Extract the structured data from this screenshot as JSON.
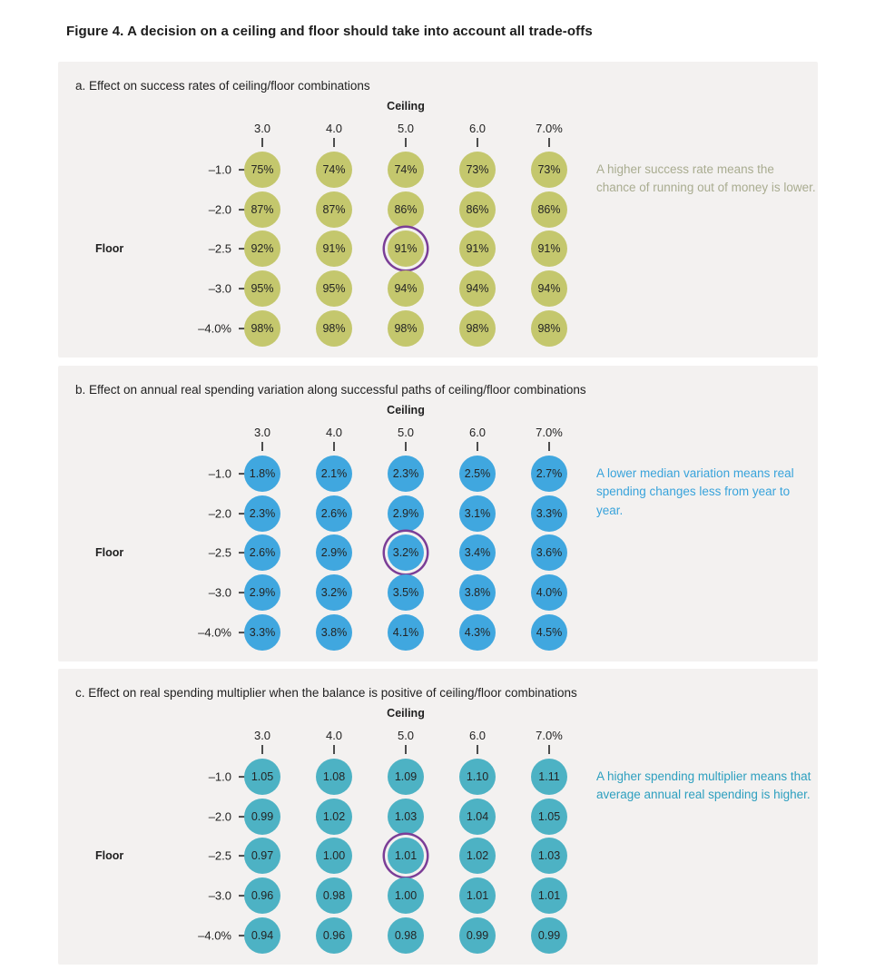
{
  "figure_title": "Figure 4. A decision on a ceiling and floor should take into account all trade-offs",
  "ceiling_label": "Ceiling",
  "floor_label": "Floor",
  "columns": [
    "3.0",
    "4.0",
    "5.0",
    "6.0",
    "7.0%"
  ],
  "rows": [
    "–1.0",
    "–2.0",
    "–2.5",
    "–3.0",
    "–4.0%"
  ],
  "highlight": {
    "row_index": 2,
    "col_index": 2,
    "ring_color": "#7b3e97"
  },
  "panel_background": "#f3f1f0",
  "panels": [
    {
      "id": "a",
      "title": "a. Effect on success rates of ceiling/floor combinations",
      "circle_color": "#c4c76d",
      "annotation": "A higher success rate means the chance of running out of money is lower.",
      "annotation_color": "#a9ac90",
      "values": [
        [
          "75%",
          "74%",
          "74%",
          "73%",
          "73%"
        ],
        [
          "87%",
          "87%",
          "86%",
          "86%",
          "86%"
        ],
        [
          "92%",
          "91%",
          "91%",
          "91%",
          "91%"
        ],
        [
          "95%",
          "95%",
          "94%",
          "94%",
          "94%"
        ],
        [
          "98%",
          "98%",
          "98%",
          "98%",
          "98%"
        ]
      ]
    },
    {
      "id": "b",
      "title": "b. Effect on annual real spending variation along successful paths of ceiling/floor combinations",
      "circle_color": "#40a7df",
      "annotation": "A lower median variation means real spending changes less from year to year.",
      "annotation_color": "#38a3db",
      "values": [
        [
          "1.8%",
          "2.1%",
          "2.3%",
          "2.5%",
          "2.7%"
        ],
        [
          "2.3%",
          "2.6%",
          "2.9%",
          "3.1%",
          "3.3%"
        ],
        [
          "2.6%",
          "2.9%",
          "3.2%",
          "3.4%",
          "3.6%"
        ],
        [
          "2.9%",
          "3.2%",
          "3.5%",
          "3.8%",
          "4.0%"
        ],
        [
          "3.3%",
          "3.8%",
          "4.1%",
          "4.3%",
          "4.5%"
        ]
      ]
    },
    {
      "id": "c",
      "title": "c. Effect on real spending multiplier when the balance is positive of ceiling/floor combinations",
      "circle_color": "#4db2c4",
      "annotation": "A higher spending multiplier means that average annual real spending is higher.",
      "annotation_color": "#2d9fbf",
      "values": [
        [
          "1.05",
          "1.08",
          "1.09",
          "1.10",
          "1.11"
        ],
        [
          "0.99",
          "1.02",
          "1.03",
          "1.04",
          "1.05"
        ],
        [
          "0.97",
          "1.00",
          "1.01",
          "1.02",
          "1.03"
        ],
        [
          "0.96",
          "0.98",
          "1.00",
          "1.01",
          "1.01"
        ],
        [
          "0.94",
          "0.96",
          "0.98",
          "0.99",
          "0.99"
        ]
      ]
    }
  ],
  "chart_data": [
    {
      "type": "heatmap",
      "title": "a. Effect on success rates of ceiling/floor combinations",
      "xlabel": "Ceiling",
      "ylabel": "Floor",
      "x_categories": [
        "3.0",
        "4.0",
        "5.0",
        "6.0",
        "7.0%"
      ],
      "y_categories": [
        "–1.0",
        "–2.0",
        "–2.5",
        "–3.0",
        "–4.0%"
      ],
      "unit": "%",
      "values": [
        [
          75,
          74,
          74,
          73,
          73
        ],
        [
          87,
          87,
          86,
          86,
          86
        ],
        [
          92,
          91,
          91,
          91,
          91
        ],
        [
          95,
          95,
          94,
          94,
          94
        ],
        [
          98,
          98,
          98,
          98,
          98
        ]
      ],
      "highlight_cell": {
        "ceiling": "5.0",
        "floor": "–2.5",
        "value": 91
      },
      "annotation": "A higher success rate means the chance of running out of money is lower.",
      "marker_color": "#c4c76d"
    },
    {
      "type": "heatmap",
      "title": "b. Effect on annual real spending variation along successful paths of ceiling/floor combinations",
      "xlabel": "Ceiling",
      "ylabel": "Floor",
      "x_categories": [
        "3.0",
        "4.0",
        "5.0",
        "6.0",
        "7.0%"
      ],
      "y_categories": [
        "–1.0",
        "–2.0",
        "–2.5",
        "–3.0",
        "–4.0%"
      ],
      "unit": "%",
      "values": [
        [
          1.8,
          2.1,
          2.3,
          2.5,
          2.7
        ],
        [
          2.3,
          2.6,
          2.9,
          3.1,
          3.3
        ],
        [
          2.6,
          2.9,
          3.2,
          3.4,
          3.6
        ],
        [
          2.9,
          3.2,
          3.5,
          3.8,
          4.0
        ],
        [
          3.3,
          3.8,
          4.1,
          4.3,
          4.5
        ]
      ],
      "highlight_cell": {
        "ceiling": "5.0",
        "floor": "–2.5",
        "value": 3.2
      },
      "annotation": "A lower median variation means real spending changes less from year to year.",
      "marker_color": "#40a7df"
    },
    {
      "type": "heatmap",
      "title": "c. Effect on real spending multiplier when the balance is positive of ceiling/floor combinations",
      "xlabel": "Ceiling",
      "ylabel": "Floor",
      "x_categories": [
        "3.0",
        "4.0",
        "5.0",
        "6.0",
        "7.0%"
      ],
      "y_categories": [
        "–1.0",
        "–2.0",
        "–2.5",
        "–3.0",
        "–4.0%"
      ],
      "unit": "multiplier",
      "values": [
        [
          1.05,
          1.08,
          1.09,
          1.1,
          1.11
        ],
        [
          0.99,
          1.02,
          1.03,
          1.04,
          1.05
        ],
        [
          0.97,
          1.0,
          1.01,
          1.02,
          1.03
        ],
        [
          0.96,
          0.98,
          1.0,
          1.01,
          1.01
        ],
        [
          0.94,
          0.96,
          0.98,
          0.99,
          0.99
        ]
      ],
      "highlight_cell": {
        "ceiling": "5.0",
        "floor": "–2.5",
        "value": 1.01
      },
      "annotation": "A higher spending multiplier means that average annual real spending is higher.",
      "marker_color": "#4db2c4"
    }
  ]
}
